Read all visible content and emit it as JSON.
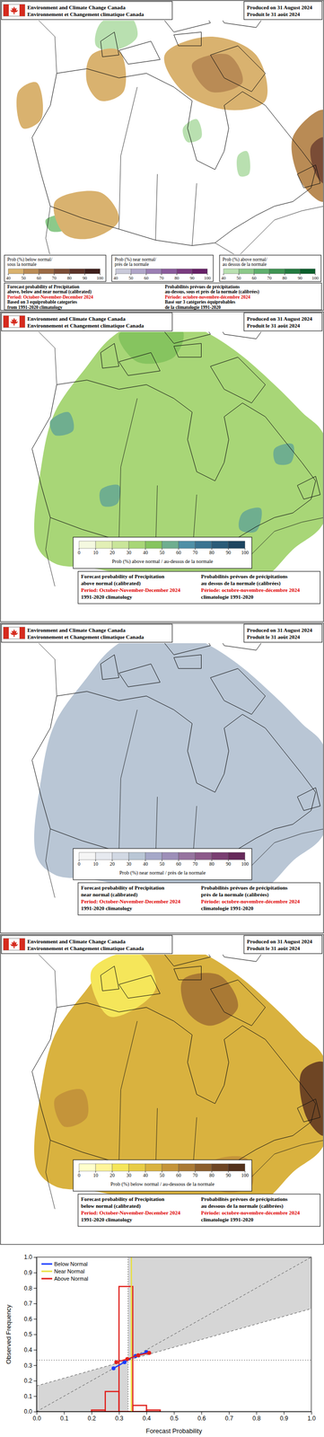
{
  "header": {
    "org_en": "Environment and Climate Change Canada",
    "org_fr": "Environnement et Changement climatique Canada",
    "produced_en": "Produced on 31 August 2024",
    "produced_fr": "Produit le 31 août 2024"
  },
  "panels": [
    {
      "legends": [
        {
          "title": [
            "Prob (%) below normal/",
            "sous la normale"
          ],
          "ticks": [
            40,
            50,
            60,
            70,
            80,
            90,
            100
          ],
          "colors": [
            "#d9b26f",
            "#b98b55",
            "#9a6a45",
            "#7a4c36",
            "#5c3429",
            "#3e1e1a"
          ]
        },
        {
          "title": [
            "Prob (%) near normal/",
            "près de la normale"
          ],
          "ticks": [
            40,
            50,
            60,
            70,
            80,
            90,
            100
          ],
          "colors": [
            "#c9c9d9",
            "#b0a6c8",
            "#9b7fb3",
            "#8a5b9b",
            "#7a3b80",
            "#661f66"
          ]
        },
        {
          "title": [
            "Prob (%) above normal/",
            "au dessus de la normale"
          ],
          "ticks": [
            40,
            50,
            60,
            70,
            80,
            90,
            100
          ],
          "colors": [
            "#b9e0b0",
            "#8cc98a",
            "#5faf6d",
            "#3f9453",
            "#237a3f",
            "#0b5e2c"
          ]
        }
      ],
      "caption_en": {
        "title": [
          "Forecast probability of Precipitation",
          "above, below and near normal (calibrated)"
        ],
        "period": "Period: October-November-December 2024",
        "note": [
          "Based on 3 equiprobable categories",
          "from 1991-2020 climatology"
        ]
      },
      "caption_fr": {
        "title": [
          "Probabilités prévues de précipitations",
          "au-dessus, sous et près de la normale (calibrées)"
        ],
        "period": "Période: octobre-novembre-décembre 2024",
        "note": [
          "Basé sur 3 catégories équiprobables",
          "de la climatologie 1991-2020"
        ]
      }
    },
    {
      "legends": [
        {
          "title": [
            "Prob (%) above normal / au-dessus de la normale"
          ],
          "ticks": [
            0,
            10,
            20,
            30,
            40,
            50,
            60,
            70,
            80,
            90,
            100
          ],
          "colors": [
            "#f4f8e0",
            "#e2efb5",
            "#c9e59a",
            "#a8d677",
            "#86c45f",
            "#6fae8f",
            "#4f8fa6",
            "#3a7391",
            "#2a5b78",
            "#1d4560"
          ]
        }
      ],
      "caption_en": {
        "title": [
          "Forecast probability of Precipitation",
          "above normal (calibrated)"
        ],
        "period": "Period: October-November-December 2024",
        "note": [
          "1991-2020 climatology"
        ]
      },
      "caption_fr": {
        "title": [
          "Probabilités prévues de précipitations",
          "au dessus de la normale (calibrées)"
        ],
        "period": "Période: octobre-novembre-décembre 2024",
        "note": [
          "climatologie 1991-2020"
        ]
      }
    },
    {
      "legends": [
        {
          "title": [
            "Prob (%) near normal / près de la normale"
          ],
          "ticks": [
            0,
            10,
            20,
            30,
            40,
            50,
            60,
            70,
            80,
            90,
            100
          ],
          "colors": [
            "#f5f5f5",
            "#e6e9ef",
            "#d1d8e3",
            "#b9c6d5",
            "#a5a8c8",
            "#9d8fb8",
            "#96749f",
            "#8c5a8a",
            "#7a3f72",
            "#662a5a"
          ]
        }
      ],
      "caption_en": {
        "title": [
          "Forecast probability of Precipitation",
          "near normal (calibrated)"
        ],
        "period": "Period: October-November-December 2024",
        "note": [
          "1991-2020 climatology"
        ]
      },
      "caption_fr": {
        "title": [
          "Probabilités prévues de précipitations",
          "près de la normale (calibrées)"
        ],
        "period": "Période: octobre-novembre-décembre 2024",
        "note": [
          "climatologie 1991-2020"
        ]
      }
    },
    {
      "legends": [
        {
          "title": [
            "Prob (%) below normal / au-dessous de la normale"
          ],
          "ticks": [
            0,
            10,
            20,
            30,
            40,
            50,
            60,
            70,
            80,
            90,
            100
          ],
          "colors": [
            "#ffffcc",
            "#fff59a",
            "#f5e65a",
            "#e8cc45",
            "#d9b23f",
            "#c4943a",
            "#a97934",
            "#8c5e2c",
            "#6e4524",
            "#52301b"
          ]
        }
      ],
      "caption_en": {
        "title": [
          "Forecast probability of Precipitation",
          "below normal (calibrated)"
        ],
        "period": "Period: October-November-December 2024",
        "note": [
          "1991-2020 climatology"
        ]
      },
      "caption_fr": {
        "title": [
          "Probabilités prévues de précipitations",
          "au dessous de la normale (calibrées)"
        ],
        "period": "Période: octobre-novembre-décembre 2024",
        "note": [
          "climatologie 1991-2020"
        ]
      }
    }
  ],
  "chart_data": {
    "type": "reliability",
    "x_label": "Forecast Probability",
    "y_label": "Observed Frequency",
    "xlim": [
      0,
      1
    ],
    "ylim": [
      0,
      1
    ],
    "xticks": [
      {
        "value": 0,
        "label": "0.0"
      },
      0.1,
      0.2,
      0.3,
      0.4,
      0.5,
      0.6,
      0.7,
      0.8,
      0.9,
      {
        "value": 1,
        "label": "1.0"
      }
    ],
    "yticks": [
      {
        "value": 0,
        "label": "0.0"
      },
      0.1,
      0.2,
      0.3,
      0.4,
      0.5,
      0.6,
      0.7,
      0.8,
      0.9,
      {
        "value": 1,
        "label": "1.0"
      }
    ],
    "legend": "upper left",
    "climatology": 0.333,
    "histogram": {
      "color": "#e0201c",
      "bins": [
        0.1,
        0.15,
        0.2,
        0.25,
        0.3,
        0.35,
        0.4,
        0.45,
        0.5
      ],
      "values": [
        0,
        0,
        0.01,
        0.13,
        0.81,
        0.04,
        0.01,
        0
      ]
    },
    "series": [
      {
        "name": "Below Normal",
        "color": "#1a3cff",
        "marker": "circle",
        "x": [
          0.28,
          0.32,
          0.36,
          0.4
        ],
        "values": [
          0.28,
          0.32,
          0.36,
          0.385
        ]
      },
      {
        "name": "Near Normal",
        "color": "#e8e040",
        "marker": "none",
        "x": [
          0.345,
          0.345
        ],
        "values": [
          0,
          1
        ]
      },
      {
        "name": "Above Normal",
        "color": "#e0201c",
        "marker": "circle",
        "x": [
          0.29,
          0.33,
          0.37,
          0.41
        ],
        "values": [
          0.32,
          0.34,
          0.365,
          0.38
        ]
      }
    ]
  }
}
